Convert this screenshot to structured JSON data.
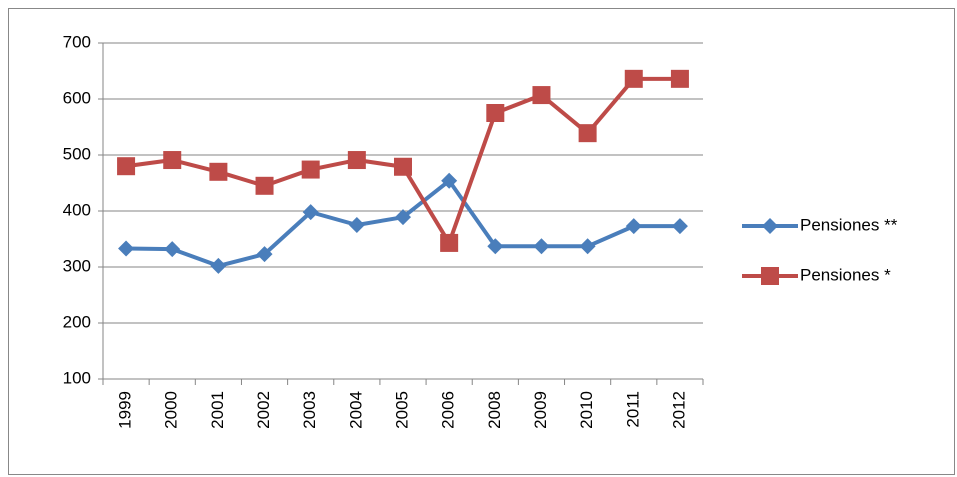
{
  "chart_data": {
    "type": "line",
    "categories": [
      "1999",
      "2000",
      "2001",
      "2002",
      "2003",
      "2004",
      "2005",
      "2006",
      "2008",
      "2009",
      "2010",
      "2011",
      "2012"
    ],
    "series": [
      {
        "name": "Pensiones **",
        "color": "#4a7ebb",
        "marker": "diamond",
        "values": [
          333,
          332,
          302,
          323,
          398,
          375,
          389,
          454,
          337,
          337,
          337,
          373,
          373
        ]
      },
      {
        "name": "Pensiones *",
        "color": "#be4b48",
        "marker": "square",
        "values": [
          480,
          491,
          470,
          445,
          474,
          491,
          479,
          343,
          575,
          607,
          539,
          636,
          636
        ]
      }
    ],
    "ylim": [
      100,
      700
    ],
    "yticks": [
      100,
      200,
      300,
      400,
      500,
      600,
      700
    ],
    "grid": true,
    "legend": "right"
  }
}
